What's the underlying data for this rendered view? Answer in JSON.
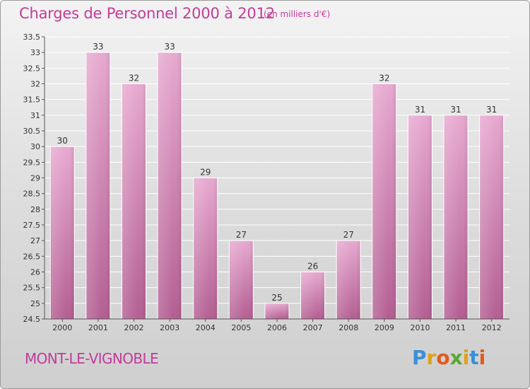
{
  "chart_data": {
    "type": "bar",
    "title": "Charges de Personnel 2000 à 2012",
    "subtitle": "(en milliers d'€)",
    "categories": [
      "2000",
      "2001",
      "2002",
      "2003",
      "2004",
      "2005",
      "2006",
      "2007",
      "2008",
      "2009",
      "2010",
      "2011",
      "2012"
    ],
    "values": [
      30,
      33,
      32,
      33,
      29,
      27,
      25,
      26,
      27,
      32,
      31,
      31,
      31
    ],
    "data_labels": [
      "30",
      "33",
      "32",
      "33",
      "29",
      "27",
      "25",
      "26",
      "27",
      "32",
      "31",
      "31",
      "31"
    ],
    "ylim": [
      24.5,
      33.5
    ],
    "yticks": [
      "24.5",
      "25",
      "25.5",
      "26",
      "26.5",
      "27",
      "27.5",
      "28",
      "28.5",
      "29",
      "29.5",
      "30",
      "30.5",
      "31",
      "31.5",
      "32",
      "32.5",
      "33",
      "33.5"
    ],
    "grid": true,
    "bar_color": "#c9679f",
    "xlabel": "",
    "ylabel": ""
  },
  "commune": "MONT-LE-VIGNOBLE",
  "logo": {
    "letters": [
      "P",
      "r",
      "o",
      "x",
      "i",
      "t",
      "i"
    ],
    "colors": [
      "#3b8fd6",
      "#e0a11b",
      "#e35a1f",
      "#5aa832",
      "#e0a11b",
      "#3b8fd6",
      "#e35a1f"
    ]
  }
}
